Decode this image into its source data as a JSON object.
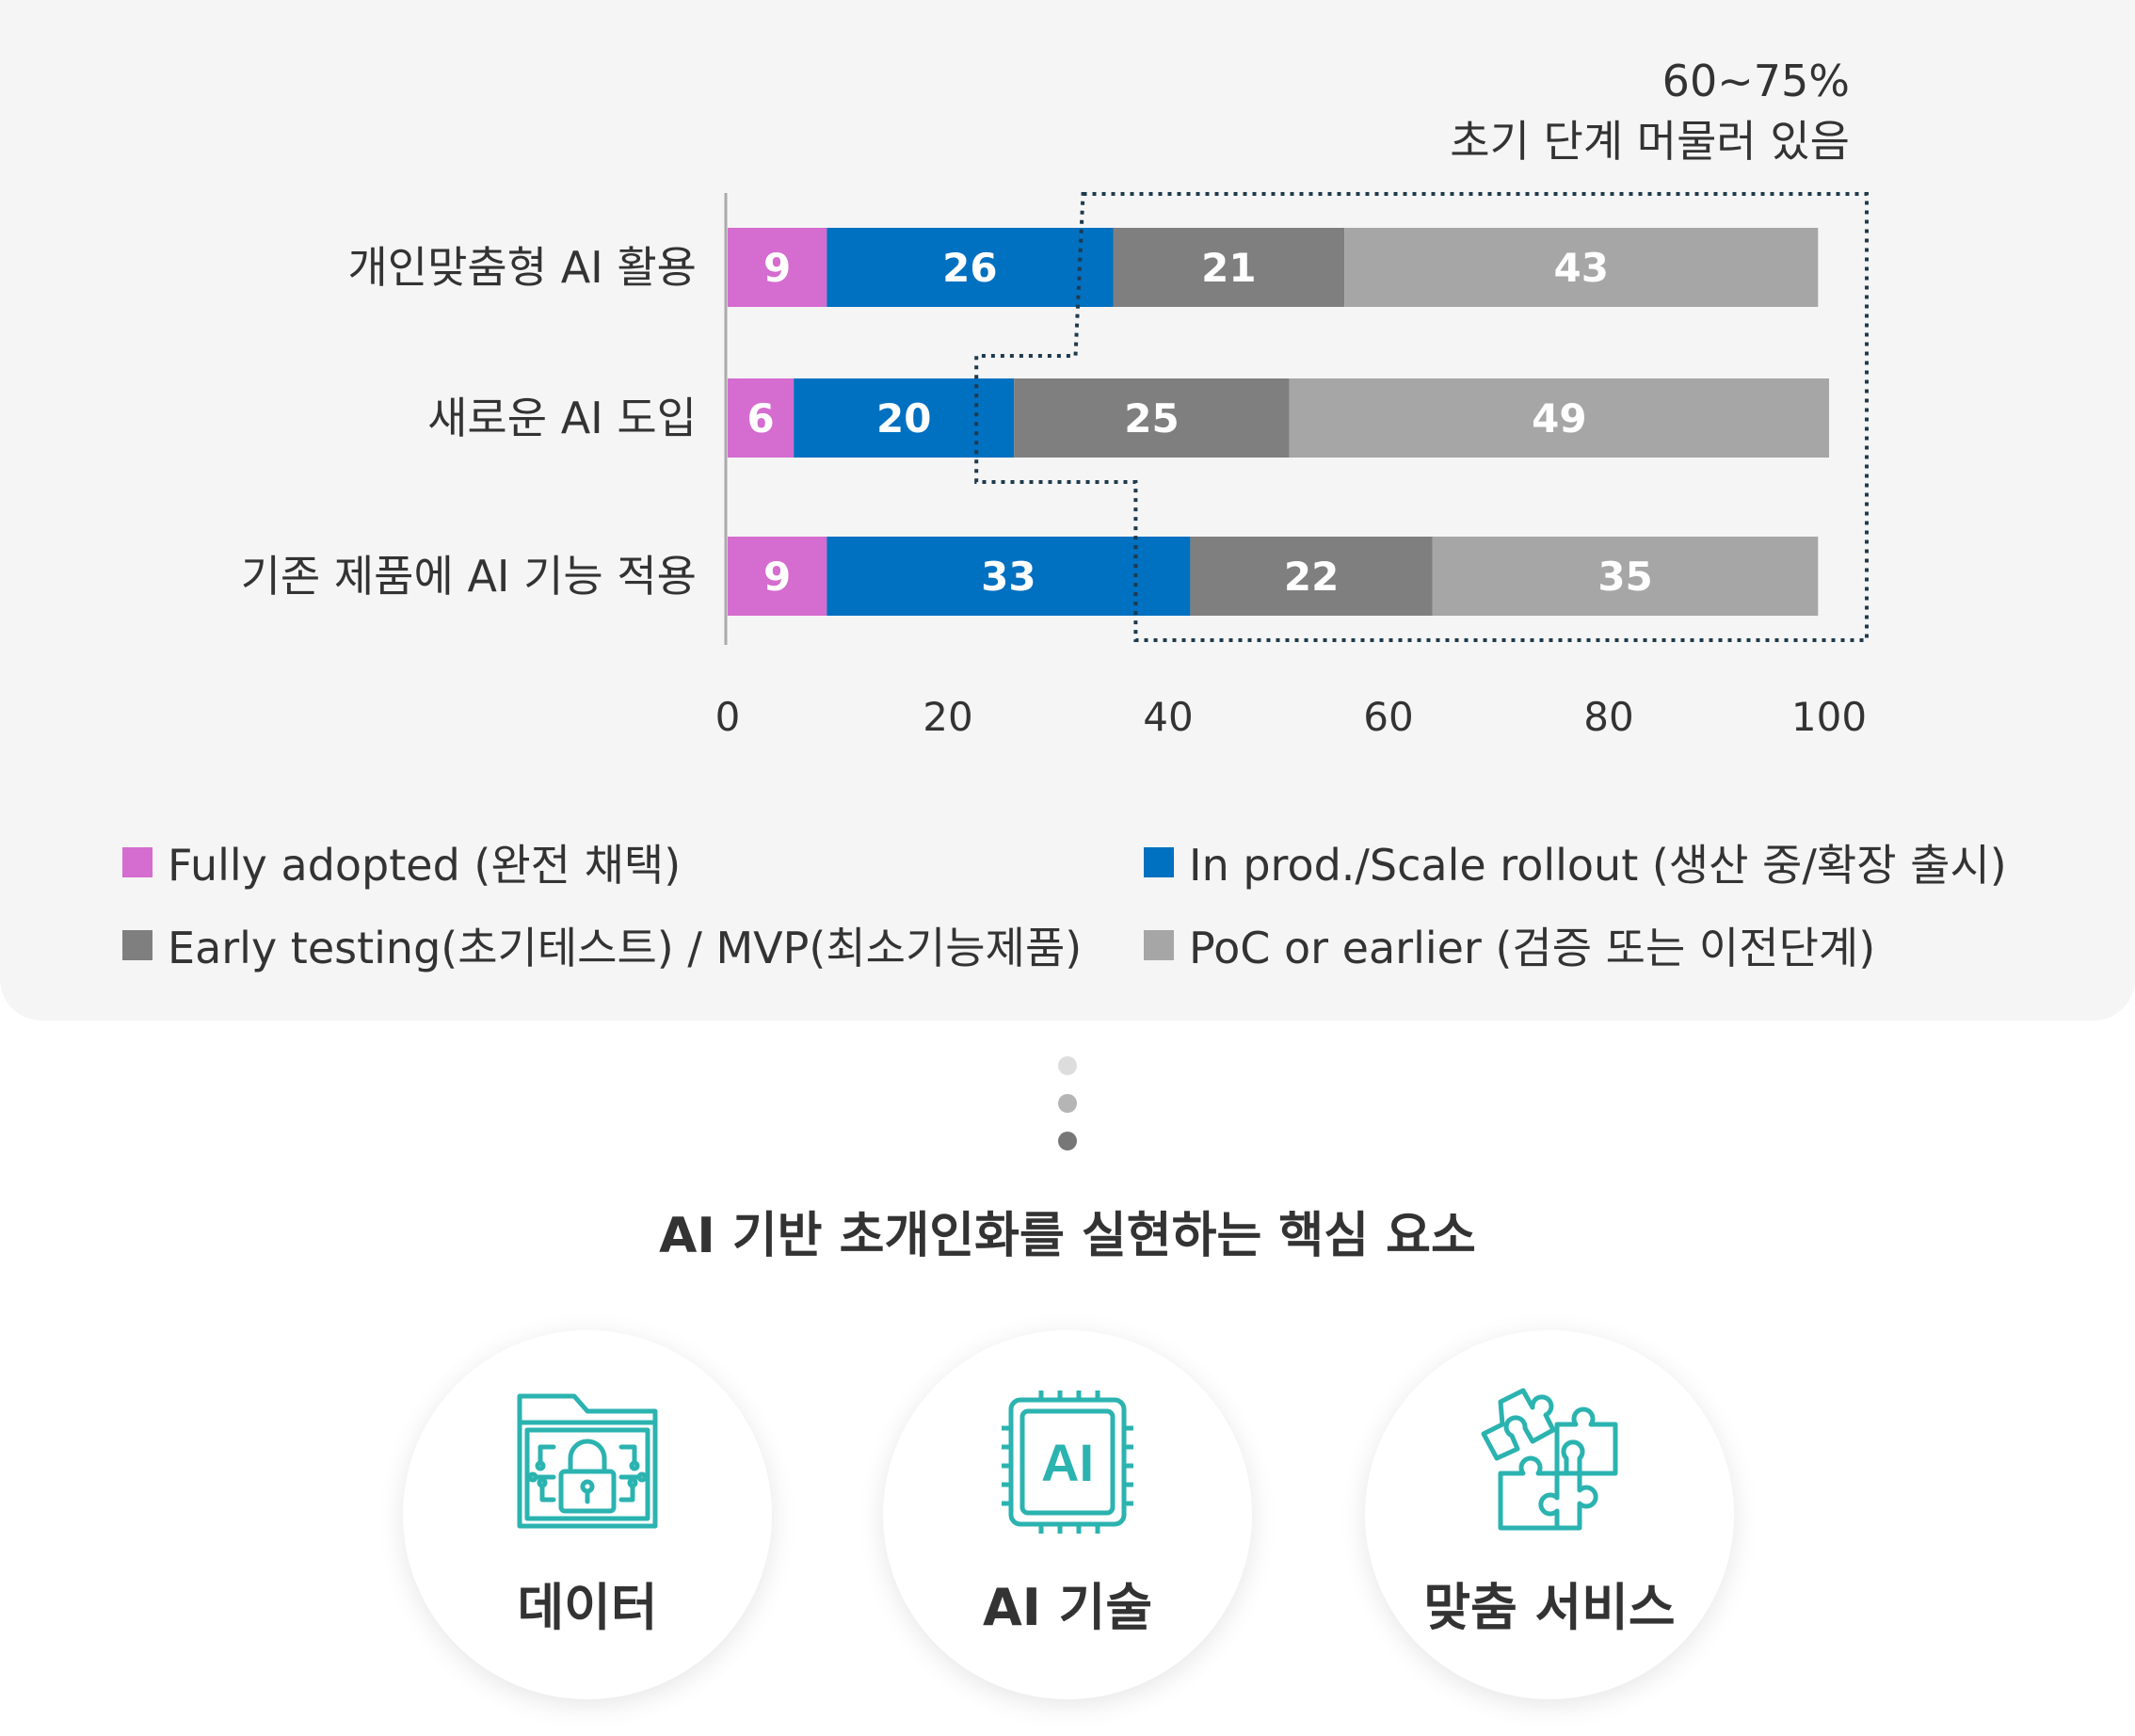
{
  "chart_data": {
    "type": "bar",
    "orientation": "horizontal",
    "stacked": true,
    "categories": [
      "개인맞춤형 AI 활용",
      "새로운 AI 도입",
      "기존 제품에 AI 기능 적용"
    ],
    "series": [
      {
        "name": "Fully adopted (완전 채택)",
        "color": "#d56ccf",
        "values": [
          9,
          6,
          9
        ]
      },
      {
        "name": "In prod./Scale rollout (생산 중/확장 출시)",
        "color": "#0070c0",
        "values": [
          26,
          20,
          33
        ]
      },
      {
        "name": "Early testing(초기테스트) / MVP(최소기능제품)",
        "color": "#7f7f7f",
        "values": [
          21,
          25,
          22
        ]
      },
      {
        "name": "PoC or earlier (검증 또는 이전단계)",
        "color": "#a6a6a6",
        "values": [
          43,
          49,
          35
        ]
      }
    ],
    "xlim": [
      0,
      100
    ],
    "xticks": [
      "0",
      "20",
      "40",
      "60",
      "80",
      "100"
    ],
    "annotation": {
      "line1": "60~75%",
      "line2": "초기 단계 머물러 있음"
    },
    "legend_position": "bottom"
  },
  "section": {
    "title": "AI 기반 초개인화를 실현하는 핵심 요소"
  },
  "cards": [
    {
      "label": "데이터",
      "icon": "data-folder-lock-icon"
    },
    {
      "label": "AI 기술",
      "icon": "ai-chip-icon"
    },
    {
      "label": "맞춤 서비스",
      "icon": "puzzle-icon"
    }
  ],
  "colors": {
    "accent": "#2bb3b0"
  }
}
